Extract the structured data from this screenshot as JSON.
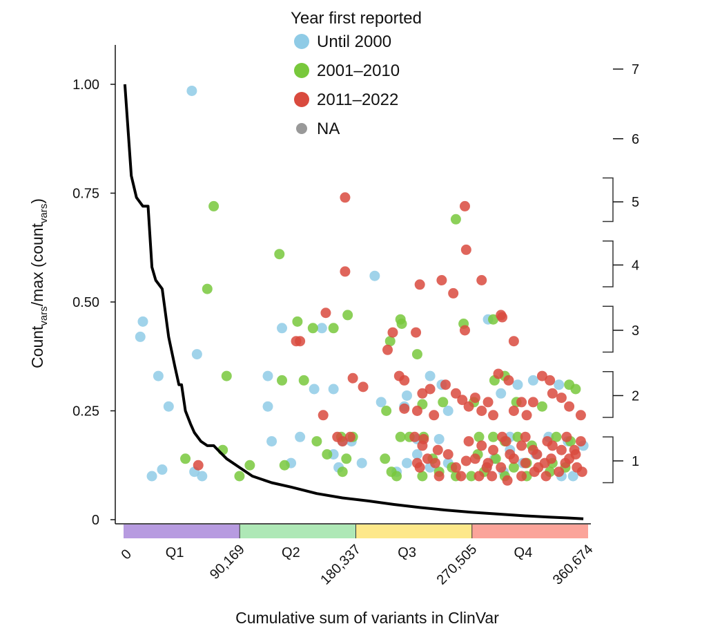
{
  "chart_data": {
    "type": "scatter",
    "xlabel": "Cumulative sum of variants in ClinVar",
    "ylabel_parts": {
      "a": "Count",
      "a_sub": "vars",
      "b": "/max (count",
      "b_sub": "vars",
      "c": ")"
    },
    "ylim": [
      0,
      1.05
    ],
    "xlim": [
      0,
      360674
    ],
    "y_ticks": [
      {
        "value": 0,
        "label": "0"
      },
      {
        "value": 0.25,
        "label": "0.25"
      },
      {
        "value": 0.5,
        "label": "0.50"
      },
      {
        "value": 0.75,
        "label": "0.75"
      },
      {
        "value": 1.0,
        "label": "1.00"
      }
    ],
    "x_ticks": [
      {
        "value": 0,
        "label": "0"
      },
      {
        "value": 90169,
        "label": "90,169"
      },
      {
        "value": 180337,
        "label": "180,337"
      },
      {
        "value": 270505,
        "label": "270,505"
      },
      {
        "value": 360674,
        "label": "360,674"
      }
    ],
    "quartiles": [
      {
        "label": "Q1",
        "from": 0,
        "to": 90169,
        "color": "#b79be0"
      },
      {
        "label": "Q2",
        "from": 90169,
        "to": 180337,
        "color": "#aee8b6"
      },
      {
        "label": "Q3",
        "from": 180337,
        "to": 270505,
        "color": "#fde88a"
      },
      {
        "label": "Q4",
        "from": 270505,
        "to": 360674,
        "color": "#fba49a"
      }
    ],
    "right_axis": {
      "labels": [
        {
          "label": "7",
          "y": 1.035,
          "bracket": null
        },
        {
          "label": "6",
          "y": 0.875,
          "bracket": null
        },
        {
          "label": "5",
          "y": 0.73,
          "bracket": [
            0.685,
            0.785
          ]
        },
        {
          "label": "4",
          "y": 0.585,
          "bracket": [
            0.535,
            0.64
          ]
        },
        {
          "label": "3",
          "y": 0.435,
          "bracket": [
            0.385,
            0.49
          ]
        },
        {
          "label": "2",
          "y": 0.285,
          "bracket": [
            0.235,
            0.34
          ]
        },
        {
          "label": "1",
          "y": 0.135,
          "bracket": [
            0.085,
            0.19
          ]
        }
      ]
    },
    "legend": {
      "title": "Year first reported",
      "items": [
        {
          "label": "Until 2000",
          "color": "#8fcbe6"
        },
        {
          "label": "2001–2010",
          "color": "#78c83c"
        },
        {
          "label": "2011–2022",
          "color": "#d94a3e"
        },
        {
          "label": "NA",
          "color": "#999999"
        }
      ]
    },
    "curve": {
      "x": [
        1000,
        6000,
        10000,
        15000,
        19000,
        22000,
        25000,
        30000,
        35000,
        40000,
        43000,
        45000,
        48000,
        52000,
        55000,
        60000,
        65000,
        70000,
        75000,
        80000,
        90000,
        100000,
        115000,
        130000,
        150000,
        170000,
        190000,
        210000,
        230000,
        250000,
        270000,
        290000,
        310000,
        330000,
        345000,
        357000
      ],
      "y": [
        1.0,
        0.79,
        0.74,
        0.72,
        0.72,
        0.58,
        0.55,
        0.53,
        0.42,
        0.35,
        0.31,
        0.31,
        0.25,
        0.22,
        0.2,
        0.18,
        0.17,
        0.17,
        0.155,
        0.14,
        0.12,
        0.1,
        0.085,
        0.075,
        0.06,
        0.05,
        0.043,
        0.035,
        0.028,
        0.022,
        0.017,
        0.013,
        0.009,
        0.006,
        0.004,
        0.002
      ]
    },
    "series": [
      {
        "name": "Until 2000",
        "color": "#8fcbe6",
        "points": [
          [
            53000,
            0.985
          ],
          [
            15000,
            0.455
          ],
          [
            13000,
            0.42
          ],
          [
            27000,
            0.33
          ],
          [
            57000,
            0.38
          ],
          [
            35000,
            0.26
          ],
          [
            22000,
            0.1
          ],
          [
            30000,
            0.115
          ],
          [
            55000,
            0.11
          ],
          [
            61000,
            0.1
          ],
          [
            112000,
            0.33
          ],
          [
            112000,
            0.26
          ],
          [
            123000,
            0.44
          ],
          [
            154000,
            0.44
          ],
          [
            148000,
            0.3
          ],
          [
            163000,
            0.3
          ],
          [
            115000,
            0.18
          ],
          [
            137000,
            0.19
          ],
          [
            163000,
            0.15
          ],
          [
            170000,
            0.18
          ],
          [
            177000,
            0.18
          ],
          [
            130000,
            0.13
          ],
          [
            167000,
            0.12
          ],
          [
            195000,
            0.56
          ],
          [
            200000,
            0.27
          ],
          [
            220000,
            0.285
          ],
          [
            238000,
            0.33
          ],
          [
            218000,
            0.26
          ],
          [
            247000,
            0.31
          ],
          [
            252000,
            0.25
          ],
          [
            245000,
            0.185
          ],
          [
            228000,
            0.185
          ],
          [
            220000,
            0.13
          ],
          [
            212000,
            0.11
          ],
          [
            228000,
            0.15
          ],
          [
            238000,
            0.12
          ],
          [
            252000,
            0.13
          ],
          [
            185000,
            0.13
          ],
          [
            283000,
            0.46
          ],
          [
            293000,
            0.29
          ],
          [
            306000,
            0.31
          ],
          [
            318000,
            0.32
          ],
          [
            338000,
            0.31
          ],
          [
            300000,
            0.19
          ],
          [
            330000,
            0.19
          ],
          [
            345000,
            0.18
          ],
          [
            357000,
            0.17
          ],
          [
            288000,
            0.14
          ],
          [
            300000,
            0.16
          ],
          [
            310000,
            0.13
          ],
          [
            320000,
            0.15
          ],
          [
            340000,
            0.1
          ],
          [
            349000,
            0.1
          ],
          [
            282000,
            0.12
          ],
          [
            295000,
            0.11
          ]
        ]
      },
      {
        "name": "2001–2010",
        "color": "#78c83c",
        "points": [
          [
            70000,
            0.72
          ],
          [
            65000,
            0.53
          ],
          [
            80000,
            0.33
          ],
          [
            77000,
            0.16
          ],
          [
            48000,
            0.14
          ],
          [
            90000,
            0.1
          ],
          [
            98000,
            0.125
          ],
          [
            121000,
            0.61
          ],
          [
            135000,
            0.455
          ],
          [
            147000,
            0.44
          ],
          [
            163000,
            0.44
          ],
          [
            140000,
            0.32
          ],
          [
            123000,
            0.32
          ],
          [
            125000,
            0.125
          ],
          [
            150000,
            0.18
          ],
          [
            158000,
            0.15
          ],
          [
            169000,
            0.19
          ],
          [
            174000,
            0.47
          ],
          [
            170000,
            0.11
          ],
          [
            173000,
            0.14
          ],
          [
            178000,
            0.19
          ],
          [
            207000,
            0.41
          ],
          [
            215000,
            0.46
          ],
          [
            216000,
            0.45
          ],
          [
            228000,
            0.38
          ],
          [
            204000,
            0.25
          ],
          [
            232000,
            0.265
          ],
          [
            248000,
            0.27
          ],
          [
            215000,
            0.19
          ],
          [
            222000,
            0.19
          ],
          [
            233000,
            0.19
          ],
          [
            240000,
            0.14
          ],
          [
            208000,
            0.11
          ],
          [
            212000,
            0.1
          ],
          [
            232000,
            0.1
          ],
          [
            245000,
            0.11
          ],
          [
            258000,
            0.1
          ],
          [
            203000,
            0.14
          ],
          [
            255000,
            0.12
          ],
          [
            258000,
            0.69
          ],
          [
            264000,
            0.45
          ],
          [
            287000,
            0.46
          ],
          [
            272000,
            0.27
          ],
          [
            288000,
            0.32
          ],
          [
            296000,
            0.33
          ],
          [
            305000,
            0.27
          ],
          [
            325000,
            0.26
          ],
          [
            346000,
            0.31
          ],
          [
            351000,
            0.3
          ],
          [
            287000,
            0.19
          ],
          [
            296000,
            0.18
          ],
          [
            306000,
            0.19
          ],
          [
            317000,
            0.17
          ],
          [
            336000,
            0.19
          ],
          [
            347000,
            0.18
          ],
          [
            275000,
            0.15
          ],
          [
            289000,
            0.14
          ],
          [
            303000,
            0.12
          ],
          [
            313000,
            0.1
          ],
          [
            333000,
            0.13
          ],
          [
            343000,
            0.12
          ],
          [
            270000,
            0.1
          ],
          [
            280000,
            0.11
          ],
          [
            296000,
            0.1
          ],
          [
            313000,
            0.13
          ],
          [
            331000,
            0.11
          ],
          [
            276000,
            0.19
          ]
        ]
      },
      {
        "name": "2011–2022",
        "color": "#d94a3e",
        "points": [
          [
            58000,
            0.125
          ],
          [
            172000,
            0.74
          ],
          [
            172000,
            0.57
          ],
          [
            157000,
            0.475
          ],
          [
            137000,
            0.41
          ],
          [
            134000,
            0.41
          ],
          [
            178000,
            0.325
          ],
          [
            186000,
            0.305
          ],
          [
            155000,
            0.24
          ],
          [
            166000,
            0.19
          ],
          [
            170000,
            0.18
          ],
          [
            176000,
            0.19
          ],
          [
            205000,
            0.39
          ],
          [
            209000,
            0.43
          ],
          [
            214000,
            0.33
          ],
          [
            218000,
            0.32
          ],
          [
            227000,
            0.43
          ],
          [
            230000,
            0.54
          ],
          [
            247000,
            0.55
          ],
          [
            218000,
            0.255
          ],
          [
            228000,
            0.25
          ],
          [
            232000,
            0.29
          ],
          [
            238000,
            0.3
          ],
          [
            241000,
            0.24
          ],
          [
            250000,
            0.31
          ],
          [
            258000,
            0.29
          ],
          [
            226000,
            0.19
          ],
          [
            232000,
            0.17
          ],
          [
            244000,
            0.16
          ],
          [
            252000,
            0.15
          ],
          [
            228000,
            0.13
          ],
          [
            242000,
            0.13
          ],
          [
            236000,
            0.14
          ],
          [
            258000,
            0.12
          ],
          [
            262000,
            0.1
          ],
          [
            266000,
            0.135
          ],
          [
            245000,
            0.1
          ],
          [
            230000,
            0.12
          ],
          [
            233000,
            0.185
          ],
          [
            256000,
            0.52
          ],
          [
            265000,
            0.435
          ],
          [
            265000,
            0.72
          ],
          [
            266000,
            0.62
          ],
          [
            278000,
            0.55
          ],
          [
            294000,
            0.465
          ],
          [
            303000,
            0.41
          ],
          [
            293000,
            0.47
          ],
          [
            263000,
            0.275
          ],
          [
            268000,
            0.26
          ],
          [
            273000,
            0.28
          ],
          [
            283000,
            0.27
          ],
          [
            291000,
            0.335
          ],
          [
            299000,
            0.32
          ],
          [
            309000,
            0.27
          ],
          [
            318000,
            0.27
          ],
          [
            325000,
            0.33
          ],
          [
            331000,
            0.32
          ],
          [
            340000,
            0.28
          ],
          [
            346000,
            0.26
          ],
          [
            355000,
            0.24
          ],
          [
            303000,
            0.25
          ],
          [
            313000,
            0.24
          ],
          [
            333000,
            0.29
          ],
          [
            278000,
            0.25
          ],
          [
            287000,
            0.24
          ],
          [
            268000,
            0.18
          ],
          [
            278000,
            0.17
          ],
          [
            287000,
            0.16
          ],
          [
            297000,
            0.18
          ],
          [
            309000,
            0.17
          ],
          [
            318000,
            0.16
          ],
          [
            329000,
            0.18
          ],
          [
            340000,
            0.16
          ],
          [
            351000,
            0.15
          ],
          [
            273000,
            0.14
          ],
          [
            283000,
            0.13
          ],
          [
            293000,
            0.12
          ],
          [
            303000,
            0.14
          ],
          [
            312000,
            0.13
          ],
          [
            322000,
            0.12
          ],
          [
            332000,
            0.14
          ],
          [
            343000,
            0.13
          ],
          [
            352000,
            0.12
          ],
          [
            356000,
            0.11
          ],
          [
            276000,
            0.1
          ],
          [
            286000,
            0.1
          ],
          [
            298000,
            0.09
          ],
          [
            309000,
            0.1
          ],
          [
            319000,
            0.11
          ],
          [
            328000,
            0.1
          ],
          [
            338000,
            0.11
          ],
          [
            346000,
            0.14
          ],
          [
            350000,
            0.16
          ],
          [
            300000,
            0.15
          ],
          [
            321000,
            0.15
          ],
          [
            333000,
            0.17
          ],
          [
            294000,
            0.19
          ],
          [
            312000,
            0.19
          ],
          [
            344000,
            0.19
          ],
          [
            355000,
            0.18
          ],
          [
            282000,
            0.12
          ],
          [
            327000,
            0.13
          ]
        ]
      },
      {
        "name": "NA",
        "color": "#999999",
        "points": []
      }
    ]
  }
}
